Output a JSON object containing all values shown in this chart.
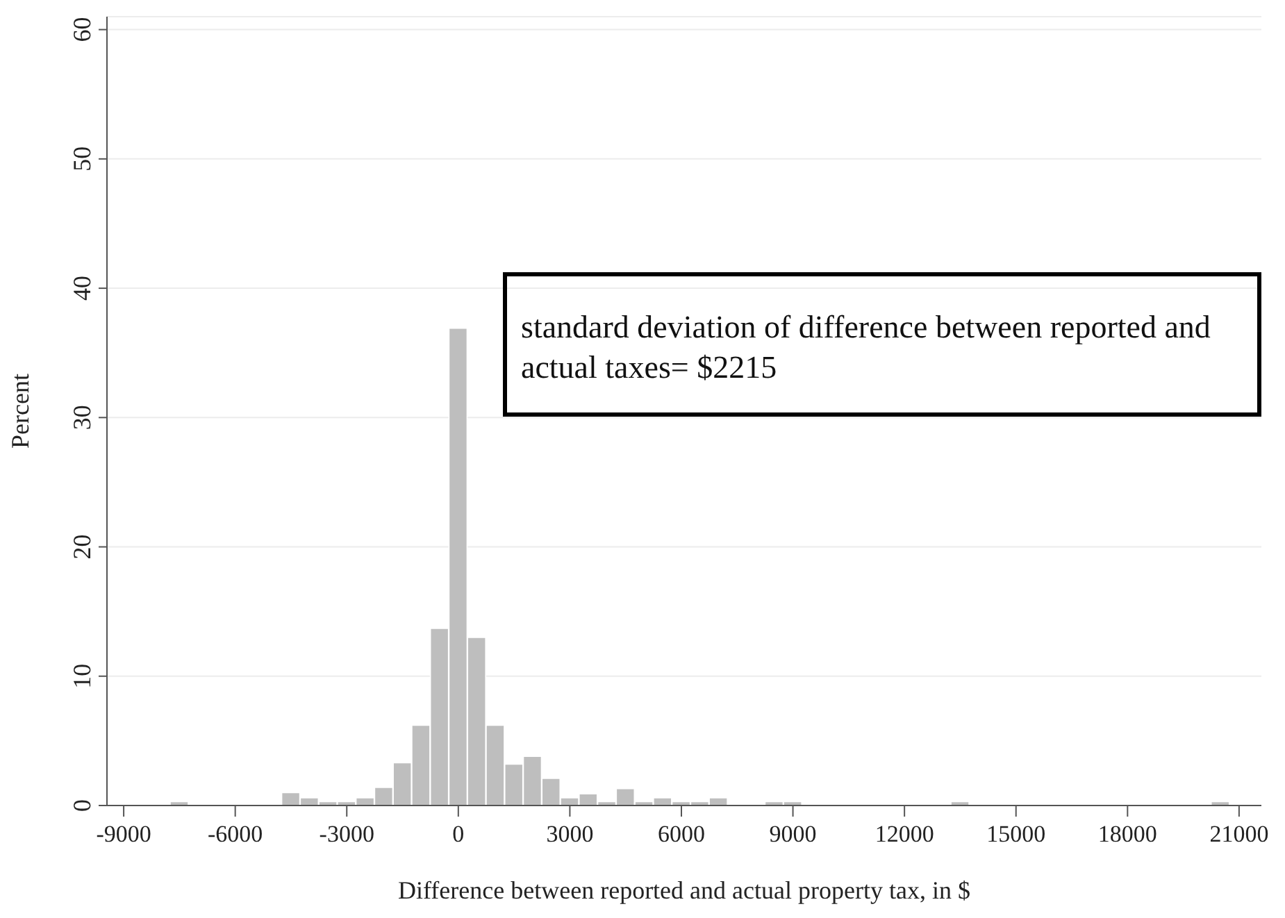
{
  "chart_data": {
    "type": "histogram",
    "xlabel": "Difference between reported and actual property tax, in $",
    "ylabel": "Percent",
    "bins": [
      -7750,
      -7250,
      -6750,
      -6250,
      -5750,
      -5250,
      -4750,
      -4250,
      -3750,
      -3250,
      -2750,
      -2250,
      -1750,
      -1250,
      -750,
      -250,
      250,
      750,
      1250,
      1750,
      2250,
      2750,
      3250,
      3750,
      4250,
      4750,
      5250,
      5750,
      6250,
      6750,
      7250,
      7750,
      8250,
      8750,
      9250,
      9750,
      10250,
      10750,
      11250,
      11750,
      12250,
      12750,
      13250,
      13750,
      14250,
      14750,
      15250,
      15750,
      16250,
      16750,
      17250,
      17750,
      18250,
      18750,
      19250,
      19750,
      20250,
      20750
    ],
    "values": [
      0.3,
      0,
      0,
      0,
      0,
      0,
      1.0,
      0.6,
      0.3,
      0.3,
      0.6,
      1.4,
      3.3,
      6.2,
      13.7,
      36.9,
      13.0,
      6.2,
      3.2,
      3.8,
      2.1,
      0.6,
      0.9,
      0.3,
      1.3,
      0.3,
      0.6,
      0.3,
      0.3,
      0.6,
      0,
      0,
      0.3,
      0.3,
      0,
      0,
      0,
      0,
      0,
      0,
      0,
      0,
      0.3,
      0,
      0,
      0,
      0,
      0,
      0,
      0,
      0,
      0,
      0,
      0,
      0,
      0,
      0.3
    ],
    "color": "#bebebe",
    "xlim": [
      -9450,
      21600
    ],
    "xticks": [
      -9000,
      -6000,
      -3000,
      0,
      3000,
      6000,
      9000,
      12000,
      15000,
      18000,
      21000
    ],
    "ylim": [
      0,
      61
    ],
    "yticks": [
      0,
      10,
      20,
      30,
      40,
      50,
      60
    ],
    "grid": "y",
    "annotations": [
      "standard deviation of difference between reported and actual taxes= $2215"
    ]
  }
}
